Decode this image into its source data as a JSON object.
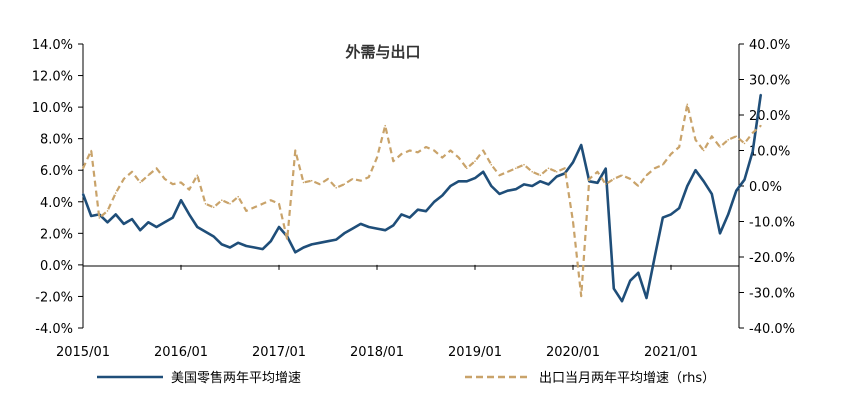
{
  "chart_data": {
    "type": "line",
    "title": "外需与出口",
    "x_tick_labels": [
      "2015/01",
      "2016/01",
      "2017/01",
      "2018/01",
      "2019/01",
      "2020/01",
      "2021/01"
    ],
    "y_left": {
      "min": -4,
      "max": 14,
      "step": 2,
      "tick_labels": [
        "14.0%",
        "12.0%",
        "10.0%",
        "8.0%",
        "6.0%",
        "4.0%",
        "2.0%",
        "0.0%",
        "-2.0%",
        "-4.0%"
      ]
    },
    "y_right": {
      "min": -40,
      "max": 40,
      "step": 10,
      "tick_labels": [
        "40.0%",
        "30.0%",
        "20.0%",
        "10.0%",
        "0.0%",
        "-10.0%",
        "-20.0%",
        "-30.0%",
        "-40.0%"
      ]
    },
    "series": [
      {
        "name": "美国零售两年平均增速",
        "axis": "left",
        "color": "#1f4e79",
        "style": "solid",
        "points": [
          [
            "2015/01",
            4.5
          ],
          [
            "2015/02",
            3.1
          ],
          [
            "2015/03",
            3.2
          ],
          [
            "2015/04",
            2.7
          ],
          [
            "2015/05",
            3.2
          ],
          [
            "2015/06",
            2.6
          ],
          [
            "2015/07",
            2.9
          ],
          [
            "2015/08",
            2.2
          ],
          [
            "2015/09",
            2.7
          ],
          [
            "2015/10",
            2.4
          ],
          [
            "2015/11",
            2.7
          ],
          [
            "2015/12",
            3.0
          ],
          [
            "2016/01",
            4.1
          ],
          [
            "2016/02",
            3.2
          ],
          [
            "2016/03",
            2.4
          ],
          [
            "2016/04",
            2.1
          ],
          [
            "2016/05",
            1.8
          ],
          [
            "2016/06",
            1.3
          ],
          [
            "2016/07",
            1.1
          ],
          [
            "2016/08",
            1.4
          ],
          [
            "2016/09",
            1.2
          ],
          [
            "2016/10",
            1.1
          ],
          [
            "2016/11",
            1.0
          ],
          [
            "2016/12",
            1.5
          ],
          [
            "2017/01",
            2.4
          ],
          [
            "2017/02",
            1.8
          ],
          [
            "2017/03",
            0.8
          ],
          [
            "2017/04",
            1.1
          ],
          [
            "2017/05",
            1.3
          ],
          [
            "2017/06",
            1.4
          ],
          [
            "2017/07",
            1.5
          ],
          [
            "2017/08",
            1.6
          ],
          [
            "2017/09",
            2.0
          ],
          [
            "2017/10",
            2.3
          ],
          [
            "2017/11",
            2.6
          ],
          [
            "2017/12",
            2.4
          ],
          [
            "2018/01",
            2.3
          ],
          [
            "2018/02",
            2.2
          ],
          [
            "2018/03",
            2.5
          ],
          [
            "2018/04",
            3.2
          ],
          [
            "2018/05",
            3.0
          ],
          [
            "2018/06",
            3.5
          ],
          [
            "2018/07",
            3.4
          ],
          [
            "2018/08",
            4.0
          ],
          [
            "2018/09",
            4.4
          ],
          [
            "2018/10",
            5.0
          ],
          [
            "2018/11",
            5.3
          ],
          [
            "2018/12",
            5.3
          ],
          [
            "2019/01",
            5.5
          ],
          [
            "2019/02",
            5.9
          ],
          [
            "2019/03",
            5.0
          ],
          [
            "2019/04",
            4.5
          ],
          [
            "2019/05",
            4.7
          ],
          [
            "2019/06",
            4.8
          ],
          [
            "2019/07",
            5.1
          ],
          [
            "2019/08",
            5.0
          ],
          [
            "2019/09",
            5.3
          ],
          [
            "2019/10",
            5.1
          ],
          [
            "2019/11",
            5.6
          ],
          [
            "2019/12",
            5.8
          ],
          [
            "2020/01",
            6.5
          ],
          [
            "2020/02",
            7.6
          ],
          [
            "2020/03",
            5.3
          ],
          [
            "2020/04",
            5.2
          ],
          [
            "2020/05",
            6.1
          ],
          [
            "2020/06",
            -1.5
          ],
          [
            "2020/07",
            -2.3
          ],
          [
            "2020/08",
            -1.0
          ],
          [
            "2020/09",
            -0.5
          ],
          [
            "2020/10",
            -2.1
          ],
          [
            "2020/11",
            0.5
          ],
          [
            "2020/12",
            3.0
          ],
          [
            "2021/01",
            3.2
          ],
          [
            "2021/02",
            3.6
          ],
          [
            "2021/03",
            5.0
          ],
          [
            "2021/04",
            6.0
          ],
          [
            "2021/05",
            5.3
          ],
          [
            "2021/06",
            4.5
          ],
          [
            "2021/07",
            2.0
          ],
          [
            "2021/08",
            3.2
          ],
          [
            "2021/09",
            4.7
          ],
          [
            "2021/10",
            5.4
          ],
          [
            "2021/11",
            7.2
          ],
          [
            "2021/12",
            10.8
          ]
        ]
      },
      {
        "name": "出口当月两年平均增速（rhs）",
        "axis": "right",
        "color": "#c9a36a",
        "style": "dashed",
        "points": [
          [
            "2015/01",
            5.0
          ],
          [
            "2015/02",
            10.0
          ],
          [
            "2015/03",
            -9.0
          ],
          [
            "2015/04",
            -7.0
          ],
          [
            "2015/05",
            -2.0
          ],
          [
            "2015/06",
            2.0
          ],
          [
            "2015/07",
            4.0
          ],
          [
            "2015/08",
            1.0
          ],
          [
            "2015/09",
            3.0
          ],
          [
            "2015/10",
            5.0
          ],
          [
            "2015/11",
            2.0
          ],
          [
            "2015/12",
            0.5
          ],
          [
            "2016/01",
            1.0
          ],
          [
            "2016/02",
            -1.0
          ],
          [
            "2016/03",
            3.0
          ],
          [
            "2016/04",
            -5.0
          ],
          [
            "2016/05",
            -6.0
          ],
          [
            "2016/06",
            -4.0
          ],
          [
            "2016/07",
            -5.0
          ],
          [
            "2016/08",
            -3.0
          ],
          [
            "2016/09",
            -7.0
          ],
          [
            "2016/10",
            -6.0
          ],
          [
            "2016/11",
            -5.0
          ],
          [
            "2016/12",
            -4.0
          ],
          [
            "2017/01",
            -5.0
          ],
          [
            "2017/02",
            -15.0
          ],
          [
            "2017/03",
            10.0
          ],
          [
            "2017/04",
            1.0
          ],
          [
            "2017/05",
            1.5
          ],
          [
            "2017/06",
            0.5
          ],
          [
            "2017/07",
            2.0
          ],
          [
            "2017/08",
            -0.5
          ],
          [
            "2017/09",
            0.5
          ],
          [
            "2017/10",
            2.0
          ],
          [
            "2017/11",
            1.5
          ],
          [
            "2017/12",
            2.5
          ],
          [
            "2018/01",
            8.0
          ],
          [
            "2018/02",
            17.0
          ],
          [
            "2018/03",
            7.0
          ],
          [
            "2018/04",
            9.0
          ],
          [
            "2018/05",
            10.0
          ],
          [
            "2018/06",
            9.5
          ],
          [
            "2018/07",
            11.0
          ],
          [
            "2018/08",
            10.0
          ],
          [
            "2018/09",
            8.0
          ],
          [
            "2018/10",
            10.0
          ],
          [
            "2018/11",
            8.0
          ],
          [
            "2018/12",
            5.0
          ],
          [
            "2019/01",
            7.0
          ],
          [
            "2019/02",
            10.0
          ],
          [
            "2019/03",
            6.0
          ],
          [
            "2019/04",
            3.0
          ],
          [
            "2019/05",
            4.0
          ],
          [
            "2019/06",
            5.0
          ],
          [
            "2019/07",
            6.0
          ],
          [
            "2019/08",
            4.0
          ],
          [
            "2019/09",
            3.0
          ],
          [
            "2019/10",
            5.0
          ],
          [
            "2019/11",
            4.0
          ],
          [
            "2019/12",
            5.0
          ],
          [
            "2020/01",
            -10.0
          ],
          [
            "2020/02",
            -31.0
          ],
          [
            "2020/03",
            2.0
          ],
          [
            "2020/04",
            4.0
          ],
          [
            "2020/05",
            0.5
          ],
          [
            "2020/06",
            2.0
          ],
          [
            "2020/07",
            3.0
          ],
          [
            "2020/08",
            2.0
          ],
          [
            "2020/09",
            0.0
          ],
          [
            "2020/10",
            3.0
          ],
          [
            "2020/11",
            5.0
          ],
          [
            "2020/12",
            6.0
          ],
          [
            "2021/01",
            9.0
          ],
          [
            "2021/02",
            11.0
          ],
          [
            "2021/03",
            23.0
          ],
          [
            "2021/04",
            13.0
          ],
          [
            "2021/05",
            10.0
          ],
          [
            "2021/06",
            14.0
          ],
          [
            "2021/07",
            11.0
          ],
          [
            "2021/08",
            13.0
          ],
          [
            "2021/09",
            14.0
          ],
          [
            "2021/10",
            12.0
          ],
          [
            "2021/11",
            15.0
          ],
          [
            "2021/12",
            17.0
          ]
        ]
      }
    ]
  }
}
